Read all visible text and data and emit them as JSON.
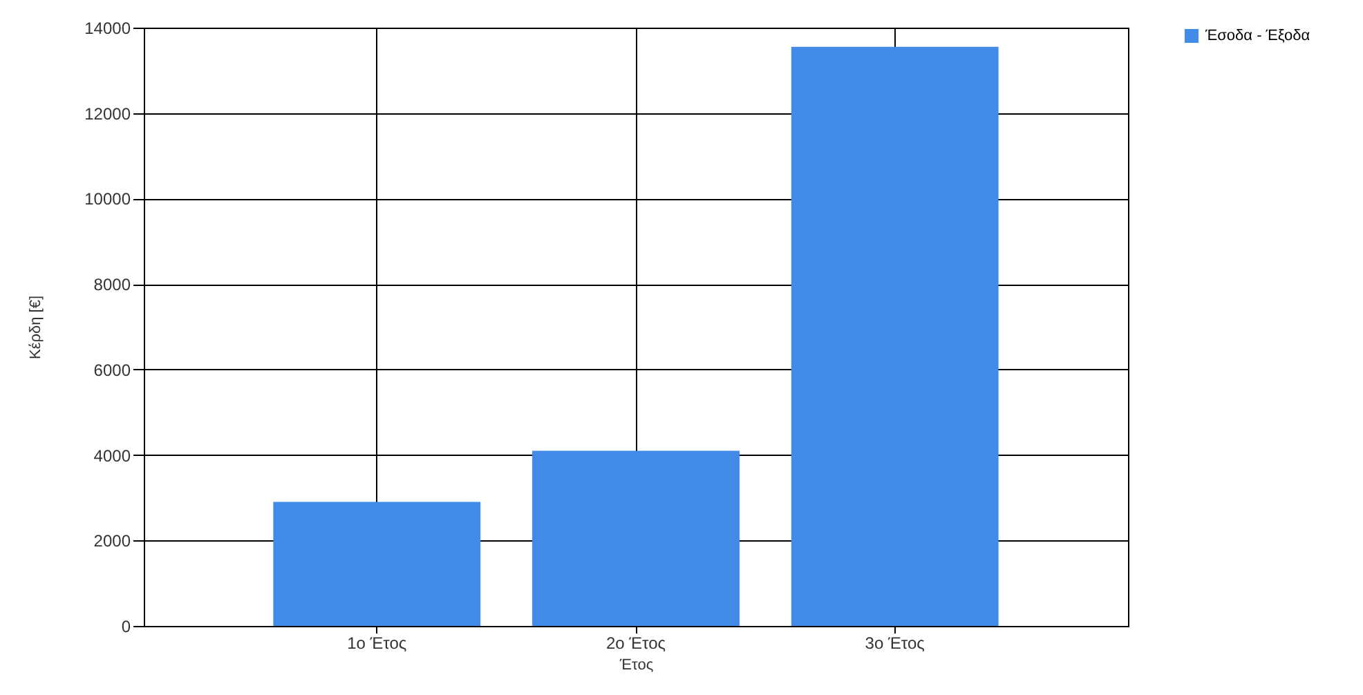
{
  "chart_data": {
    "type": "bar",
    "xlabel": "Έτος",
    "ylabel": "Κέρδη [€]",
    "categories": [
      "1ο Έτος",
      "2ο Έτος",
      "3ο Έτος"
    ],
    "series": [
      {
        "name": "Έσοδα - Έξοδα",
        "color": "#418ae8",
        "values": [
          2900,
          4100,
          13550
        ]
      }
    ],
    "ylim": [
      0,
      14000
    ],
    "yticks": [
      0,
      2000,
      4000,
      6000,
      8000,
      10000,
      12000,
      14000
    ],
    "grid": true,
    "legend": "top right"
  }
}
